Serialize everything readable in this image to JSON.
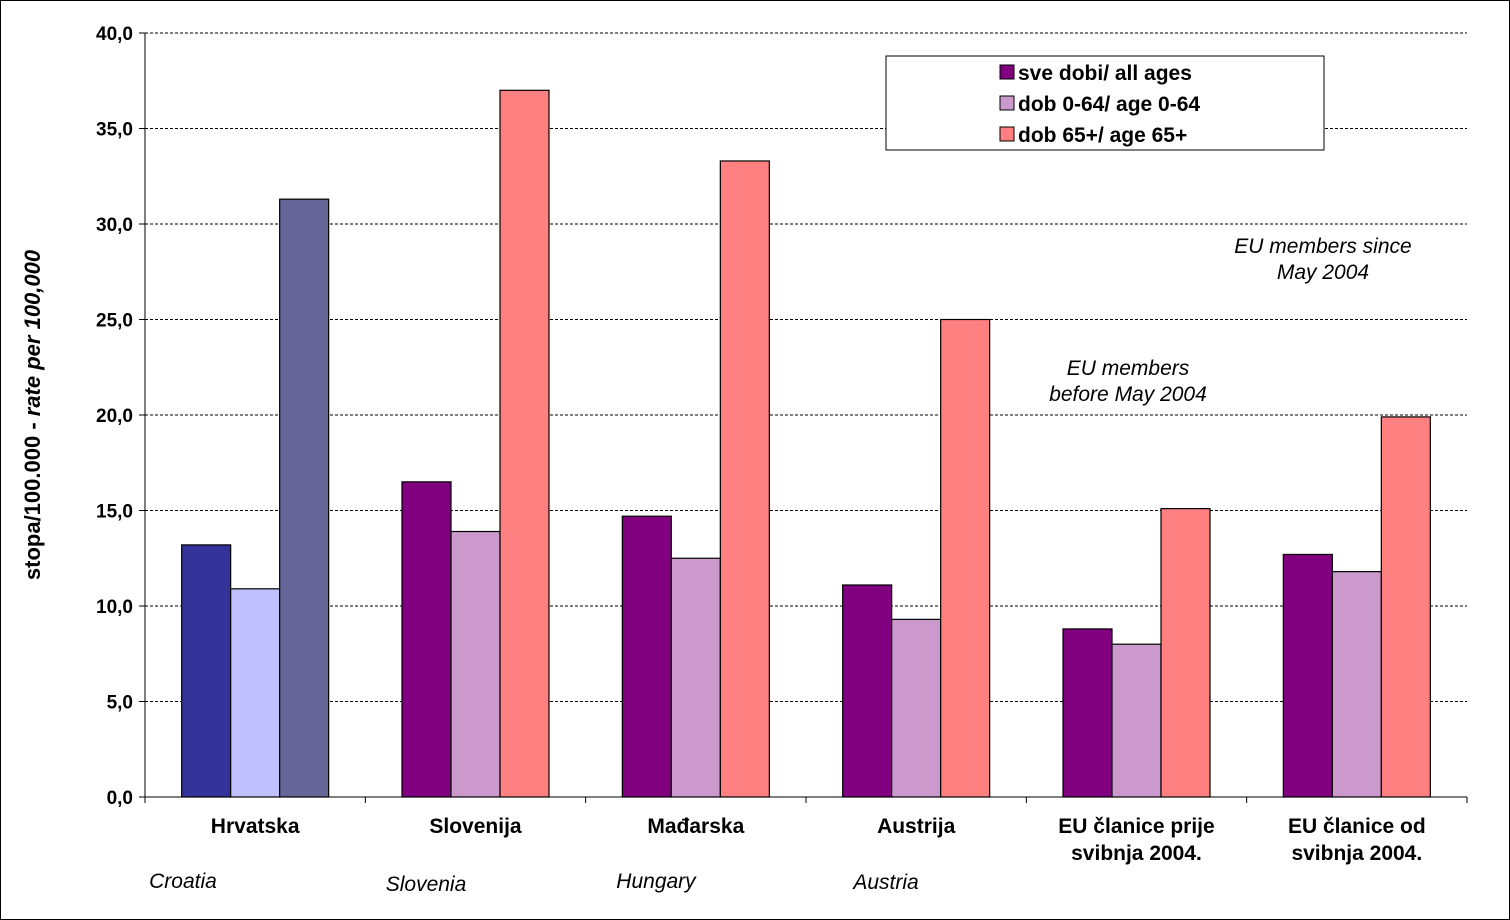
{
  "chart_data": {
    "type": "bar",
    "categories": [
      "Hrvatska",
      "Slovenija",
      "Mađarska",
      "Austrija",
      "EU članice prije svibnja 2004.",
      "EU članice od svibnja 2004."
    ],
    "category_lines": [
      [
        "Hrvatska"
      ],
      [
        "Slovenija"
      ],
      [
        "Mađarska"
      ],
      [
        "Austrija"
      ],
      [
        "EU članice prije",
        "svibnja 2004."
      ],
      [
        "EU članice od",
        "svibnja 2004."
      ]
    ],
    "category_english": [
      "Croatia",
      "Slovenia",
      "Hungary",
      "Austria",
      "",
      ""
    ],
    "series": [
      {
        "name": "sve dobi/ all ages",
        "color": "#800080",
        "values": [
          13.2,
          16.5,
          14.7,
          11.1,
          8.8,
          12.7
        ]
      },
      {
        "name": "dob 0-64/ age 0-64",
        "color": "#CC99CC",
        "values": [
          10.9,
          13.9,
          12.5,
          9.3,
          8.0,
          11.8
        ]
      },
      {
        "name": "dob 65+/ age 65+",
        "color": "#FF8080",
        "values": [
          31.3,
          37.0,
          33.3,
          25.0,
          15.1,
          19.9
        ]
      }
    ],
    "highlight_colors": [
      "#333399",
      "#C0C0FF",
      "#666699"
    ],
    "ylabel_plain": "stopa/100.000 - ",
    "ylabel_italic": "rate per 100,000",
    "ylim": [
      0,
      40
    ],
    "yticks": [
      "0,0",
      "5,0",
      "10,0",
      "15,0",
      "20,0",
      "25,0",
      "30,0",
      "35,0",
      "40,0"
    ],
    "grid": true,
    "legend_position": "top-right",
    "annotations": [
      [
        "EU members since",
        "May 2004"
      ],
      [
        "EU members",
        "before May 2004"
      ]
    ]
  }
}
